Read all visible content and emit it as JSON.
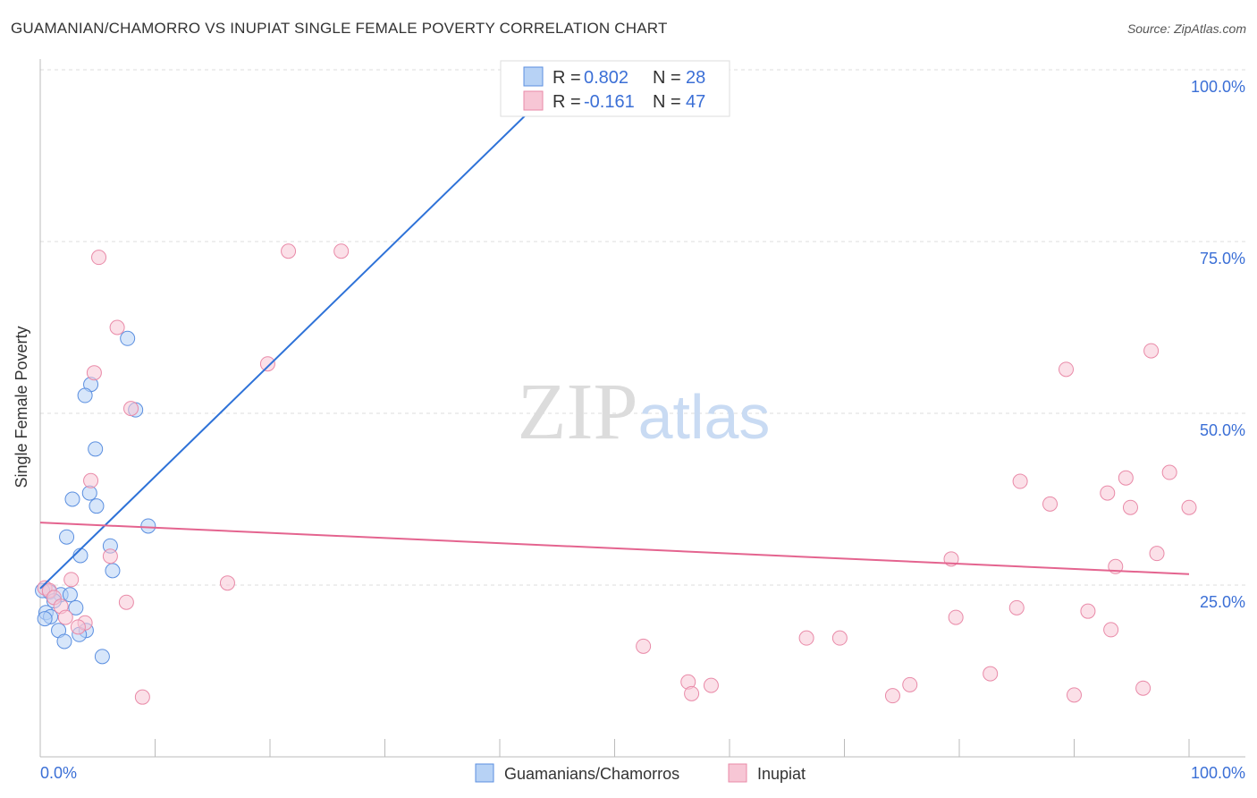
{
  "title": "GUAMANIAN/CHAMORRO VS INUPIAT SINGLE FEMALE POVERTY CORRELATION CHART",
  "source": "Source: ZipAtlas.com",
  "chart_data": {
    "type": "scatter",
    "title": "GUAMANIAN/CHAMORRO VS INUPIAT SINGLE FEMALE POVERTY CORRELATION CHART",
    "xlabel": "",
    "ylabel": "Single Female Poverty",
    "xlim": [
      0,
      100
    ],
    "ylim": [
      0,
      100
    ],
    "x_tick_labels": [
      "0.0%",
      "100.0%"
    ],
    "y_tick_labels": [
      "100.0%",
      "75.0%",
      "50.0%",
      "25.0%"
    ],
    "y_ticks": [
      100,
      75,
      50,
      25
    ],
    "grid": true,
    "legend_placement": "top-center",
    "watermark": "ZIPatlas",
    "series": [
      {
        "name": "Guamanians/Chamorros",
        "color": "#5b8fe0",
        "fill": "#b7d2f5",
        "line_color": "#2e72d8",
        "R": "0.802",
        "N": "28",
        "trend": [
          [
            0,
            24.5
          ],
          [
            46.3,
            100
          ]
        ],
        "points": [
          [
            47.9,
            100
          ],
          [
            7.6,
            60.9
          ],
          [
            8.3,
            50.5
          ],
          [
            4.4,
            54.2
          ],
          [
            3.9,
            52.6
          ],
          [
            4.8,
            44.8
          ],
          [
            2.8,
            37.5
          ],
          [
            4.3,
            38.4
          ],
          [
            4.9,
            36.5
          ],
          [
            9.4,
            33.6
          ],
          [
            2.3,
            32.0
          ],
          [
            6.1,
            30.7
          ],
          [
            3.5,
            29.3
          ],
          [
            6.3,
            27.1
          ],
          [
            0.8,
            24.0
          ],
          [
            1.8,
            23.6
          ],
          [
            2.6,
            23.6
          ],
          [
            1.2,
            22.7
          ],
          [
            3.1,
            21.7
          ],
          [
            0.5,
            21.0
          ],
          [
            0.9,
            20.4
          ],
          [
            0.4,
            20.1
          ],
          [
            1.6,
            18.4
          ],
          [
            4.0,
            18.4
          ],
          [
            3.4,
            17.8
          ],
          [
            2.1,
            16.8
          ],
          [
            5.4,
            14.6
          ],
          [
            0.2,
            24.2
          ]
        ]
      },
      {
        "name": "Inupiat",
        "color": "#e98aa8",
        "fill": "#f7c6d5",
        "line_color": "#e4648f",
        "R": "-0.161",
        "N": "47",
        "trend": [
          [
            0,
            34.1
          ],
          [
            100,
            26.6
          ]
        ],
        "points": [
          [
            5.1,
            72.7
          ],
          [
            21.6,
            73.6
          ],
          [
            26.2,
            73.6
          ],
          [
            6.7,
            62.5
          ],
          [
            4.7,
            55.9
          ],
          [
            19.8,
            57.2
          ],
          [
            7.9,
            50.7
          ],
          [
            4.4,
            40.2
          ],
          [
            6.1,
            29.2
          ],
          [
            2.7,
            25.8
          ],
          [
            16.3,
            25.3
          ],
          [
            7.5,
            22.5
          ],
          [
            0.4,
            24.6
          ],
          [
            0.8,
            24.2
          ],
          [
            1.2,
            23.2
          ],
          [
            1.8,
            21.9
          ],
          [
            2.2,
            20.3
          ],
          [
            3.9,
            19.5
          ],
          [
            3.3,
            18.9
          ],
          [
            8.9,
            8.7
          ],
          [
            52.5,
            16.1
          ],
          [
            56.4,
            10.9
          ],
          [
            56.7,
            9.2
          ],
          [
            58.4,
            10.4
          ],
          [
            66.7,
            17.3
          ],
          [
            69.6,
            17.3
          ],
          [
            74.2,
            8.9
          ],
          [
            75.7,
            10.5
          ],
          [
            79.3,
            28.8
          ],
          [
            79.7,
            20.3
          ],
          [
            82.7,
            12.1
          ],
          [
            85.0,
            21.7
          ],
          [
            85.3,
            40.1
          ],
          [
            87.9,
            36.8
          ],
          [
            89.3,
            56.4
          ],
          [
            90.0,
            9.0
          ],
          [
            91.2,
            21.2
          ],
          [
            92.9,
            38.4
          ],
          [
            93.2,
            18.5
          ],
          [
            93.6,
            27.7
          ],
          [
            94.5,
            40.6
          ],
          [
            94.9,
            36.3
          ],
          [
            96.0,
            10.0
          ],
          [
            96.7,
            59.1
          ],
          [
            97.2,
            29.6
          ],
          [
            98.3,
            41.4
          ],
          [
            100.0,
            36.3
          ]
        ]
      }
    ]
  },
  "legend_box": {
    "r_label": "R =",
    "n_label": "N ="
  }
}
